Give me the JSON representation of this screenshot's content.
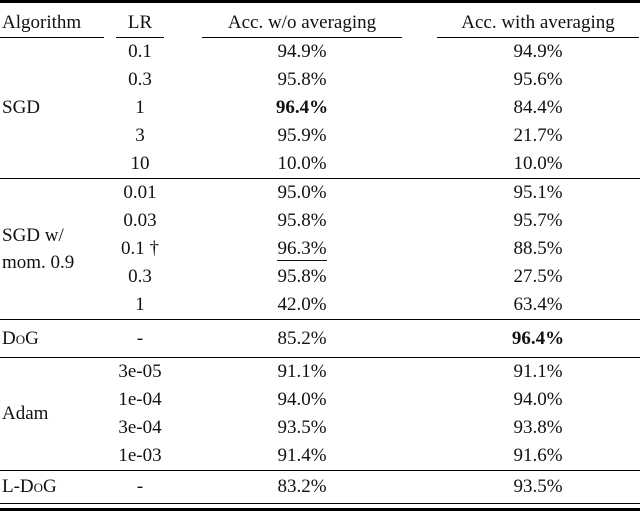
{
  "table": {
    "ink_color": "#111111",
    "rule_color": "#000000",
    "headers": [
      "Algorithm",
      "LR",
      "Acc. w/o averaging",
      "Acc. with averaging"
    ],
    "groups": [
      {
        "algorithm": "SGD",
        "rows": [
          {
            "lr": "0.1",
            "acc_wo": "94.9%",
            "acc_with": "94.9%"
          },
          {
            "lr": "0.3",
            "acc_wo": "95.8%",
            "acc_with": "95.6%"
          },
          {
            "lr": "1",
            "acc_wo": "96.4%",
            "acc_wo_style": "bold",
            "acc_with": "84.4%"
          },
          {
            "lr": "3",
            "acc_wo": "95.9%",
            "acc_with": "21.7%"
          },
          {
            "lr": "10",
            "acc_wo": "10.0%",
            "acc_with": "10.0%"
          }
        ]
      },
      {
        "algorithm": "SGD w/ mom. 0.9",
        "rows": [
          {
            "lr": "0.01",
            "acc_wo": "95.0%",
            "acc_with": "95.1%"
          },
          {
            "lr": "0.03",
            "acc_wo": "95.8%",
            "acc_with": "95.7%"
          },
          {
            "lr": "0.1 †",
            "acc_wo": "96.3%",
            "acc_wo_style": "underline",
            "acc_with": "88.5%"
          },
          {
            "lr": "0.3",
            "acc_wo": "95.8%",
            "acc_with": "27.5%"
          },
          {
            "lr": "1",
            "acc_wo": "42.0%",
            "acc_with": "63.4%"
          }
        ]
      },
      {
        "algorithm": "DoG",
        "label_style": "smallcaps",
        "rows": [
          {
            "lr": "-",
            "acc_wo": "85.2%",
            "acc_with": "96.4%",
            "acc_with_style": "bold"
          }
        ]
      },
      {
        "algorithm": "Adam",
        "rows": [
          {
            "lr": "3e-05",
            "acc_wo": "91.1%",
            "acc_with": "91.1%"
          },
          {
            "lr": "1e-04",
            "acc_wo": "94.0%",
            "acc_with": "94.0%"
          },
          {
            "lr": "3e-04",
            "acc_wo": "93.5%",
            "acc_with": "93.8%"
          },
          {
            "lr": "1e-03",
            "acc_wo": "91.4%",
            "acc_with": "91.6%"
          }
        ]
      },
      {
        "algorithm": "L-DoG",
        "label_style": "smallcaps",
        "rows": [
          {
            "lr": "-",
            "acc_wo": "83.2%",
            "acc_with": "93.5%"
          }
        ]
      }
    ]
  }
}
